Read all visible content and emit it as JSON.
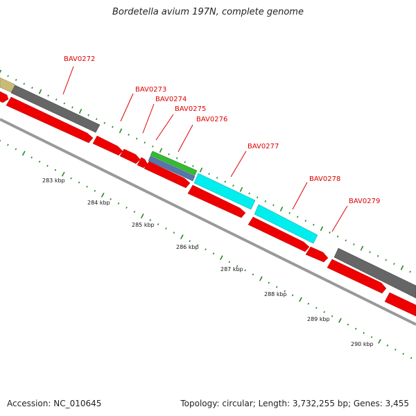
{
  "title": "Bordetella avium 197N, complete genome",
  "footer": {
    "accession": "Accession: NC_010645",
    "summary": "Topology: circular; Length: 3,732,255 bp; Genes: 3,455"
  },
  "colors": {
    "label": "#dd0000",
    "forward_cds": "#ee0000",
    "tick": "#228822",
    "backbone": "#999999",
    "gray_feature": "#666666",
    "tan_feature": "#c8bb78",
    "green_feature": "#33bb33",
    "blue_feature": "#5577aa",
    "cyan_feature": "#00eeee"
  },
  "gene_labels": [
    {
      "text": "BAV0272"
    },
    {
      "text": "BAV0273"
    },
    {
      "text": "BAV0274"
    },
    {
      "text": "BAV0275"
    },
    {
      "text": "BAV0276"
    },
    {
      "text": "BAV0277"
    },
    {
      "text": "BAV0278"
    },
    {
      "text": "BAV0279"
    }
  ],
  "kbp_labels": [
    "283 kbp",
    "284 kbp",
    "285 kbp",
    "286 kbp",
    "287 kbp",
    "288 kbp",
    "289 kbp",
    "290 kbp"
  ]
}
